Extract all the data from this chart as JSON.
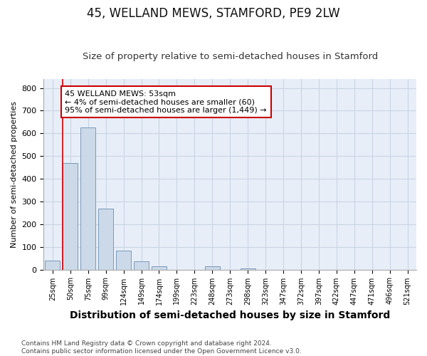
{
  "title": "45, WELLAND MEWS, STAMFORD, PE9 2LW",
  "subtitle": "Size of property relative to semi-detached houses in Stamford",
  "xlabel": "Distribution of semi-detached houses by size in Stamford",
  "ylabel": "Number of semi-detached properties",
  "footer_line1": "Contains HM Land Registry data © Crown copyright and database right 2024.",
  "footer_line2": "Contains public sector information licensed under the Open Government Licence v3.0.",
  "categories": [
    "25sqm",
    "50sqm",
    "75sqm",
    "99sqm",
    "124sqm",
    "149sqm",
    "174sqm",
    "199sqm",
    "223sqm",
    "248sqm",
    "273sqm",
    "298sqm",
    "323sqm",
    "347sqm",
    "372sqm",
    "397sqm",
    "422sqm",
    "447sqm",
    "471sqm",
    "496sqm",
    "521sqm"
  ],
  "bar_values": [
    38,
    468,
    625,
    267,
    82,
    35,
    15,
    0,
    0,
    15,
    0,
    5,
    0,
    0,
    0,
    0,
    0,
    0,
    0,
    0,
    0
  ],
  "bar_color": "#ccd9e8",
  "bar_edge_color": "#7799bb",
  "property_line_color": "#cc0000",
  "property_line_xidx": 1,
  "annotation_text_line1": "45 WELLAND MEWS: 53sqm",
  "annotation_text_line2": "← 4% of semi-detached houses are smaller (60)",
  "annotation_text_line3": "95% of semi-detached houses are larger (1,449) →",
  "annotation_box_color": "#ffffff",
  "annotation_box_edge": "#cc0000",
  "ylim": [
    0,
    840
  ],
  "yticks": [
    0,
    100,
    200,
    300,
    400,
    500,
    600,
    700,
    800
  ],
  "grid_color": "#c8d4e4",
  "background_color": "#e8eef8",
  "title_fontsize": 12,
  "subtitle_fontsize": 9.5,
  "xlabel_fontsize": 10,
  "ylabel_fontsize": 8,
  "bar_width": 0.85
}
